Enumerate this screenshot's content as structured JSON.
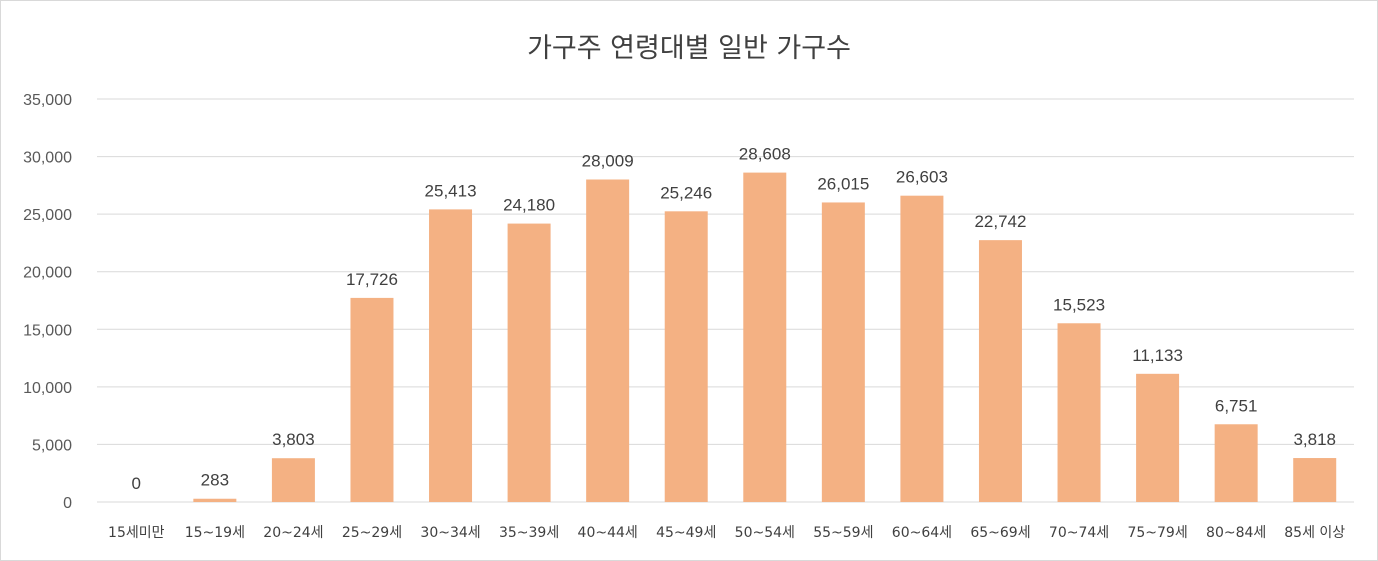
{
  "chart_data": {
    "type": "bar",
    "title": "가구주 연령대별 일반 가구수",
    "categories": [
      "15세미만",
      "15~19세",
      "20~24세",
      "25~29세",
      "30~34세",
      "35~39세",
      "40~44세",
      "45~49세",
      "50~54세",
      "55~59세",
      "60~64세",
      "65~69세",
      "70~74세",
      "75~79세",
      "80~84세",
      "85세 이상"
    ],
    "values": [
      0,
      283,
      3803,
      17726,
      25413,
      24180,
      28009,
      25246,
      28608,
      26015,
      26603,
      22742,
      15523,
      11133,
      6751,
      3818
    ],
    "data_labels": [
      "0",
      "283",
      "3,803",
      "17,726",
      "25,413",
      "24,180",
      "28,009",
      "25,246",
      "28,608",
      "26,015",
      "26,603",
      "22,742",
      "15,523",
      "11,133",
      "6,751",
      "3,818"
    ],
    "y_ticks": [
      "0",
      "5,000",
      "10,000",
      "15,000",
      "20,000",
      "25,000",
      "30,000",
      "35,000"
    ],
    "ylim": [
      0,
      35000
    ],
    "y_step": 5000,
    "grid": true,
    "legend": "none",
    "bar_color": "#F4B183",
    "grid_color": "#D9D9D9"
  }
}
